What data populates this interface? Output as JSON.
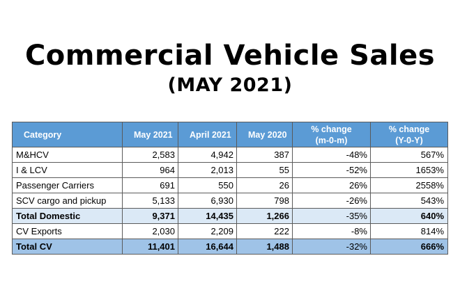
{
  "header": {
    "title": "Commercial Vehicle Sales",
    "subtitle": "(MAY 2021)"
  },
  "table": {
    "columns": {
      "category": "Category",
      "may_2021": "May 2021",
      "april_2021": "April 2021",
      "may_2020": "May 2020",
      "mom_line1": "% change",
      "mom_line2": "(m-0-m)",
      "yoy_line1": "% change",
      "yoy_line2": "(Y-0-Y)"
    },
    "rows": [
      {
        "category": "M&HCV",
        "may_2021": "2,583",
        "april_2021": "4,942",
        "may_2020": "387",
        "mom": "-48%",
        "yoy": "567%"
      },
      {
        "category": "I & LCV",
        "may_2021": "964",
        "april_2021": "2,013",
        "may_2020": "55",
        "mom": "-52%",
        "yoy": "1653%"
      },
      {
        "category": "Passenger Carriers",
        "may_2021": "691",
        "april_2021": "550",
        "may_2020": "26",
        "mom": "26%",
        "yoy": "2558%"
      },
      {
        "category": "SCV cargo and pickup",
        "may_2021": "5,133",
        "april_2021": "6,930",
        "may_2020": "798",
        "mom": "-26%",
        "yoy": "543%"
      },
      {
        "category": "Total Domestic",
        "may_2021": "9,371",
        "april_2021": "14,435",
        "may_2020": "1,266",
        "mom": "-35%",
        "yoy": "640%"
      },
      {
        "category": "CV Exports",
        "may_2021": "2,030",
        "april_2021": "2,209",
        "may_2020": "222",
        "mom": "-8%",
        "yoy": "814%"
      },
      {
        "category": "Total CV",
        "may_2021": "11,401",
        "april_2021": "16,644",
        "may_2020": "1,488",
        "mom": "-32%",
        "yoy": "666%"
      }
    ]
  },
  "colors": {
    "header_bg": "#5b9bd5",
    "total_domestic_bg": "#dbe9f6",
    "total_cv_bg": "#9fc3e7"
  }
}
